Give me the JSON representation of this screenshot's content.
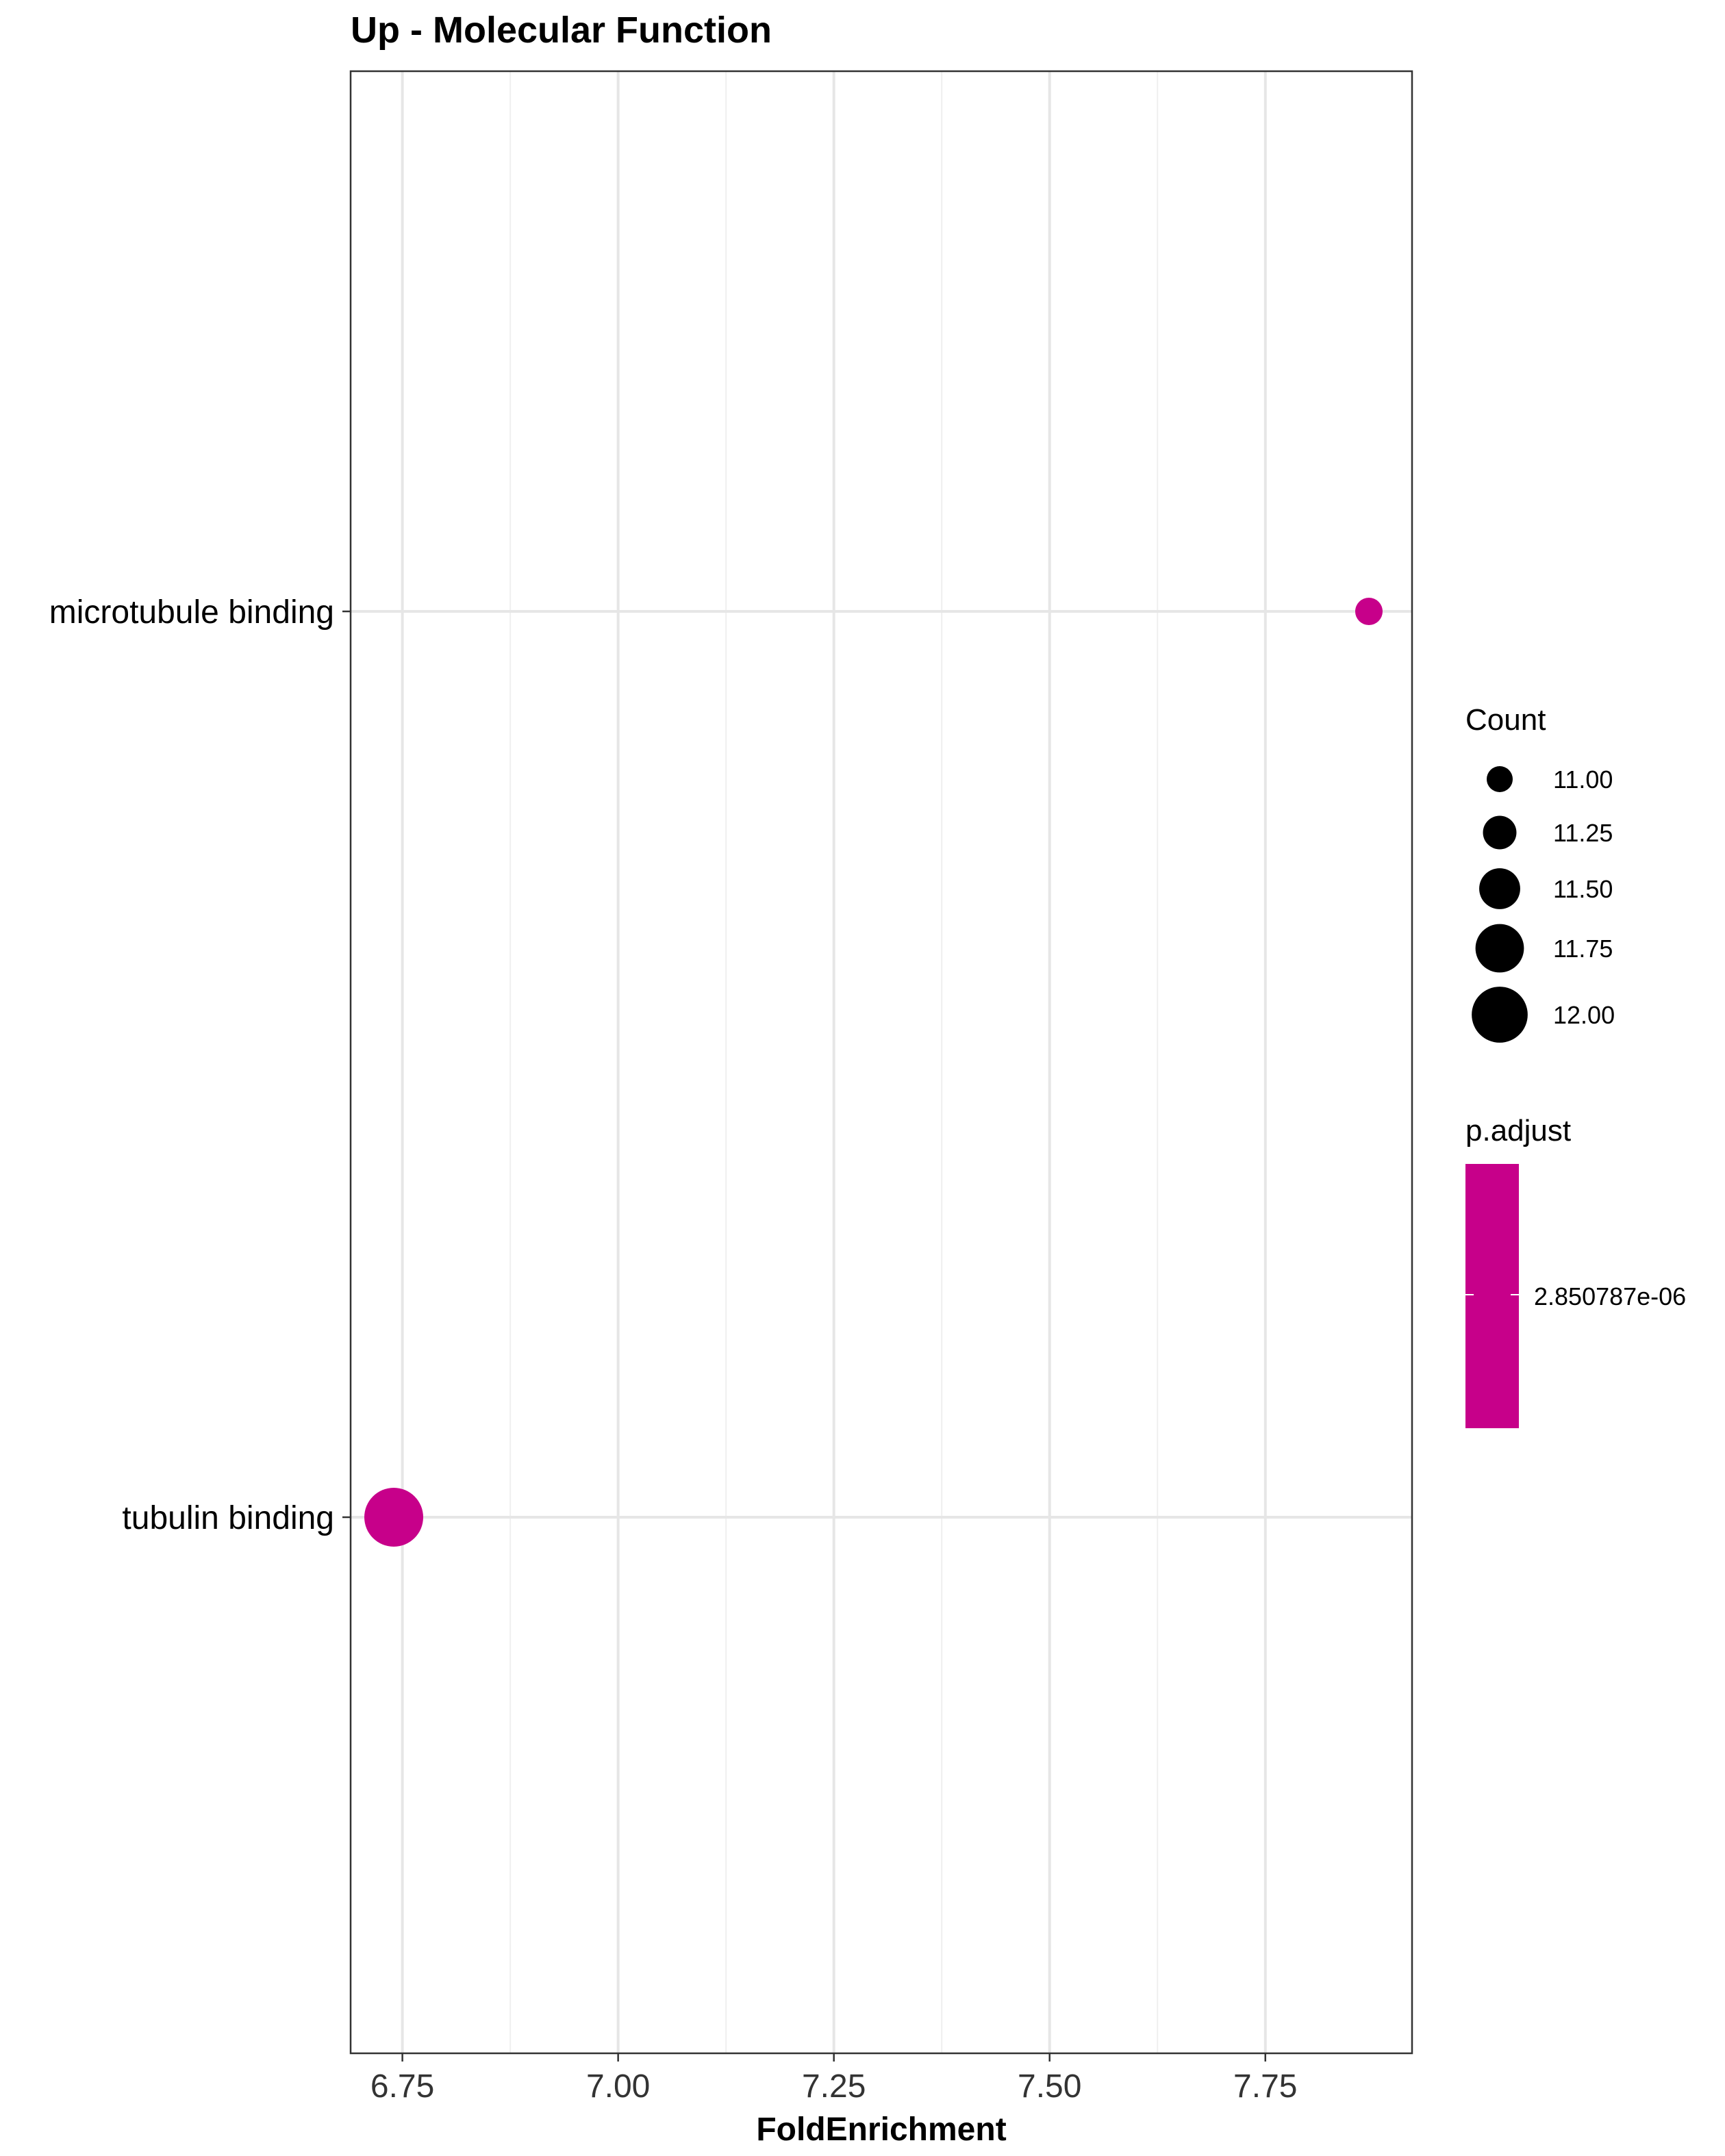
{
  "chart_data": {
    "type": "scatter",
    "title": "Up - Molecular Function",
    "xlabel": "FoldEnrichment",
    "ylabel": "",
    "xlim": [
      6.69,
      7.92
    ],
    "x_ticks": [
      6.75,
      7.0,
      7.25,
      7.5,
      7.75
    ],
    "x_tick_labels": [
      "6.75",
      "7.00",
      "7.25",
      "7.50",
      "7.75"
    ],
    "categories": [
      "microtubule binding",
      "tubulin binding"
    ],
    "points": [
      {
        "term": "microtubule binding",
        "fold_enrichment": 7.87,
        "count": 11,
        "p_adjust": "2.850787e-06"
      },
      {
        "term": "tubulin binding",
        "fold_enrichment": 6.74,
        "count": 12,
        "p_adjust": "2.850787e-06"
      }
    ],
    "point_color": "#C7008A",
    "size_legend": {
      "title": "Count",
      "values": [
        11.0,
        11.25,
        11.5,
        11.75,
        12.0
      ],
      "labels": [
        "11.00",
        "11.25",
        "11.50",
        "11.75",
        "12.00"
      ]
    },
    "color_legend": {
      "title": "p.adjust",
      "label": "2.850787e-06",
      "color": "#C7008A"
    },
    "grid": true,
    "legend_position": "right"
  }
}
